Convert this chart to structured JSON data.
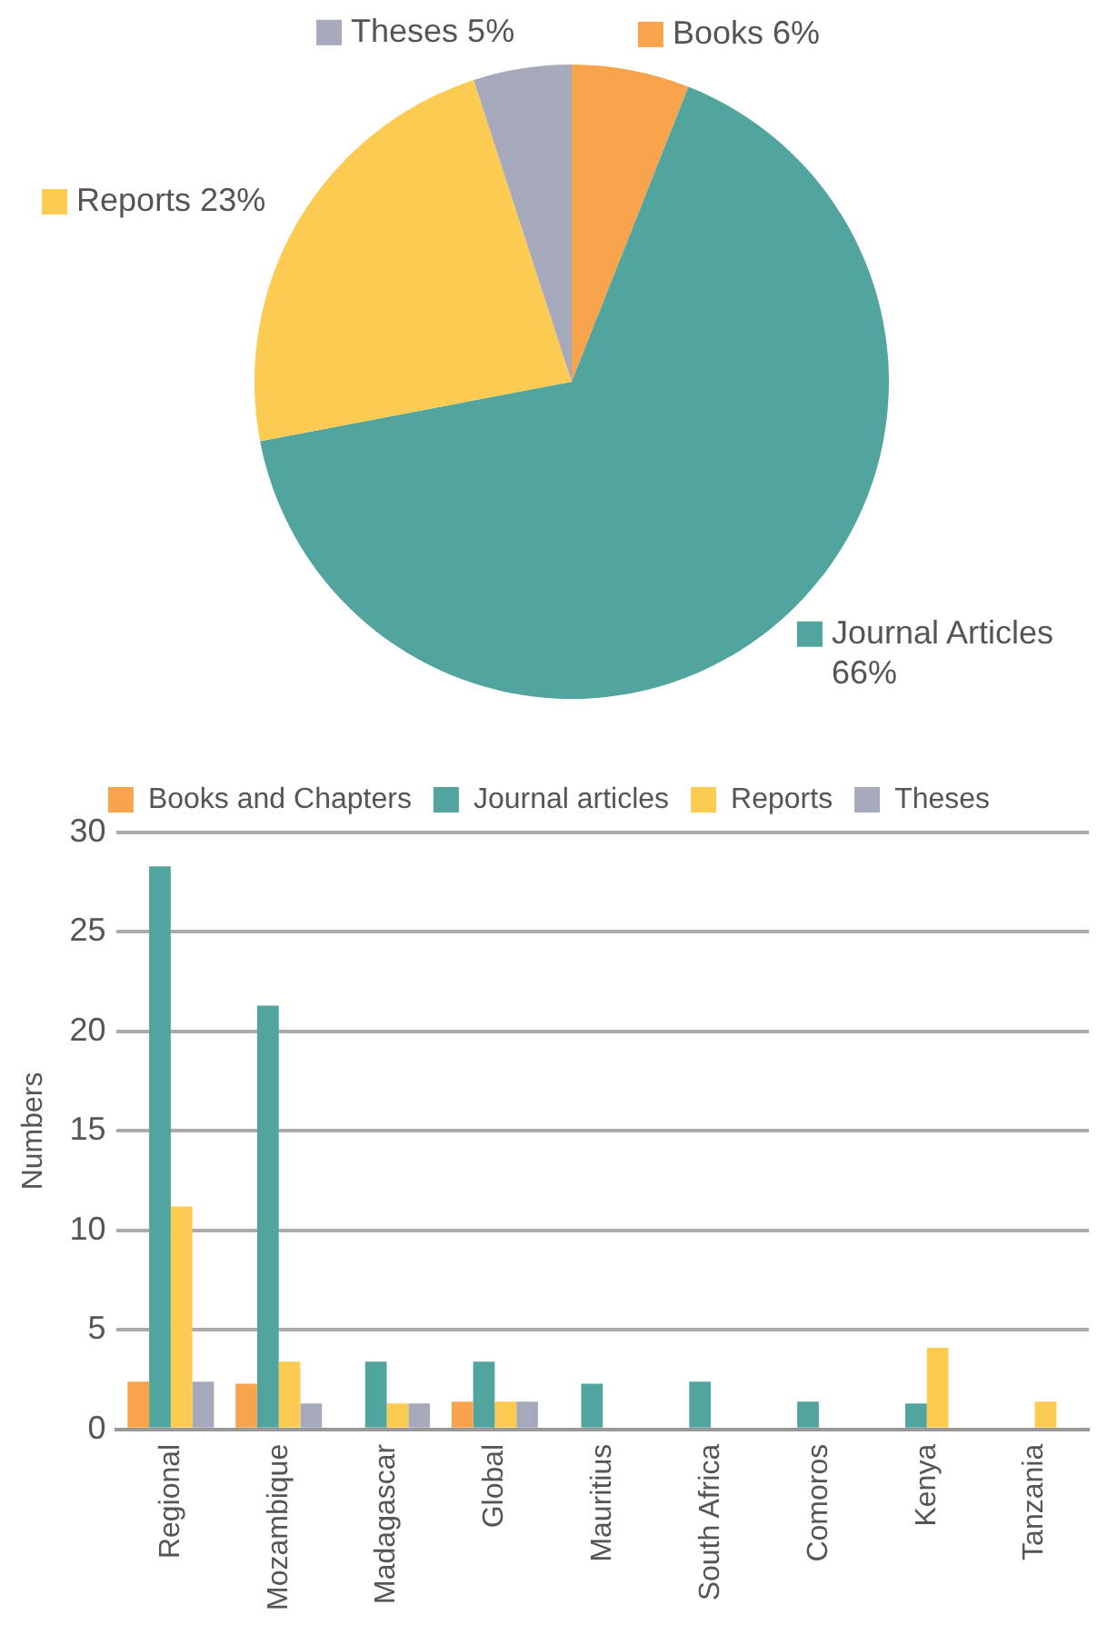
{
  "chart_data": [
    {
      "type": "pie",
      "categories": [
        "Books",
        "Journal Articles",
        "Reports",
        "Theses"
      ],
      "values": [
        6,
        66,
        23,
        5
      ],
      "colors": [
        "#f8a44c",
        "#52a59e",
        "#fdcb51",
        "#a5a9bb"
      ],
      "value_labels": [
        "6%",
        "66%",
        "23%",
        "5%"
      ],
      "legend": "right"
    },
    {
      "type": "bar",
      "ylabel": "Numbers",
      "categories": [
        "Regional",
        "Mozambique",
        "Madagascar",
        "Global",
        "Mauritius",
        "South Africa",
        "Comoros",
        "Kenya",
        "Tanzania"
      ],
      "series": [
        {
          "name": "Books and Chapters",
          "color": "#f8a44c",
          "values": [
            2.4,
            2.3,
            null,
            1.4,
            null,
            null,
            null,
            null,
            null
          ]
        },
        {
          "name": "Journal articles",
          "color": "#52a59e",
          "values": [
            28.3,
            21.3,
            3.4,
            3.4,
            2.3,
            2.4,
            1.4,
            1.3,
            null
          ]
        },
        {
          "name": "Reports",
          "color": "#fdcb51",
          "values": [
            11.2,
            3.4,
            1.3,
            1.4,
            null,
            null,
            null,
            4.1,
            1.4
          ]
        },
        {
          "name": "Theses",
          "color": "#a5a9bb",
          "values": [
            2.4,
            1.3,
            1.3,
            1.4,
            null,
            null,
            null,
            null,
            null
          ]
        }
      ],
      "ylim": [
        0,
        30
      ],
      "yticks": [
        0,
        5,
        10,
        15,
        20,
        25,
        30
      ],
      "grid": "y",
      "legend": "top"
    }
  ]
}
